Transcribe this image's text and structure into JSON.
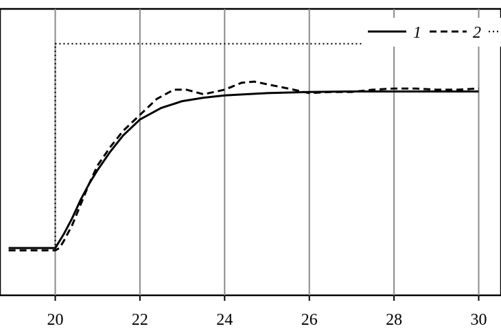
{
  "chart_data": {
    "type": "line",
    "title": "",
    "xlabel": "",
    "ylabel": "",
    "xlim": [
      18.8,
      30.6
    ],
    "ylim": [
      0,
      1.3
    ],
    "x_ticks": [
      20,
      22,
      24,
      26,
      28,
      30
    ],
    "x_tick_labels": [
      "20",
      "22",
      "24",
      "26",
      "28",
      "30"
    ],
    "grid": "vertical lines at x ticks",
    "legend_position": "top-right",
    "series": [
      {
        "name": "1",
        "style": "solid",
        "color": "#000000",
        "x": [
          18.9,
          19.5,
          20.0,
          20.2,
          20.4,
          20.6,
          20.8,
          21.0,
          21.3,
          21.6,
          22.0,
          22.5,
          23.0,
          23.5,
          24.0,
          25.0,
          26.0,
          27.0,
          28.0,
          29.0,
          30.0
        ],
        "y": [
          0.2,
          0.2,
          0.2,
          0.26,
          0.33,
          0.41,
          0.48,
          0.54,
          0.62,
          0.69,
          0.76,
          0.81,
          0.84,
          0.855,
          0.865,
          0.875,
          0.88,
          0.882,
          0.882,
          0.882,
          0.882
        ]
      },
      {
        "name": "2",
        "style": "dashed",
        "color": "#000000",
        "x": [
          18.9,
          19.5,
          20.0,
          20.1,
          20.2,
          20.4,
          20.6,
          20.8,
          21.0,
          21.3,
          21.6,
          22.0,
          22.4,
          22.8,
          23.1,
          23.5,
          24.0,
          24.4,
          24.7,
          25.1,
          25.5,
          26.0,
          26.5,
          27.0,
          27.5,
          28.0,
          28.5,
          29.0,
          29.5,
          30.0
        ],
        "y": [
          0.19,
          0.19,
          0.19,
          0.2,
          0.23,
          0.3,
          0.39,
          0.48,
          0.56,
          0.64,
          0.71,
          0.78,
          0.85,
          0.89,
          0.89,
          0.87,
          0.89,
          0.92,
          0.925,
          0.91,
          0.895,
          0.875,
          0.88,
          0.88,
          0.89,
          0.895,
          0.895,
          0.89,
          0.89,
          0.895
        ]
      },
      {
        "name": "",
        "style": "dotted",
        "color": "#000000",
        "x": [
          18.9,
          19.95,
          20.0,
          20.0,
          30.0
        ],
        "y": [
          0.2,
          0.2,
          0.2,
          1.09,
          1.09
        ]
      }
    ],
    "legend": {
      "entries": [
        {
          "label": "1",
          "style": "solid"
        },
        {
          "label": "2",
          "style": "dashed"
        },
        {
          "label": "",
          "style": "dotted"
        }
      ]
    }
  }
}
